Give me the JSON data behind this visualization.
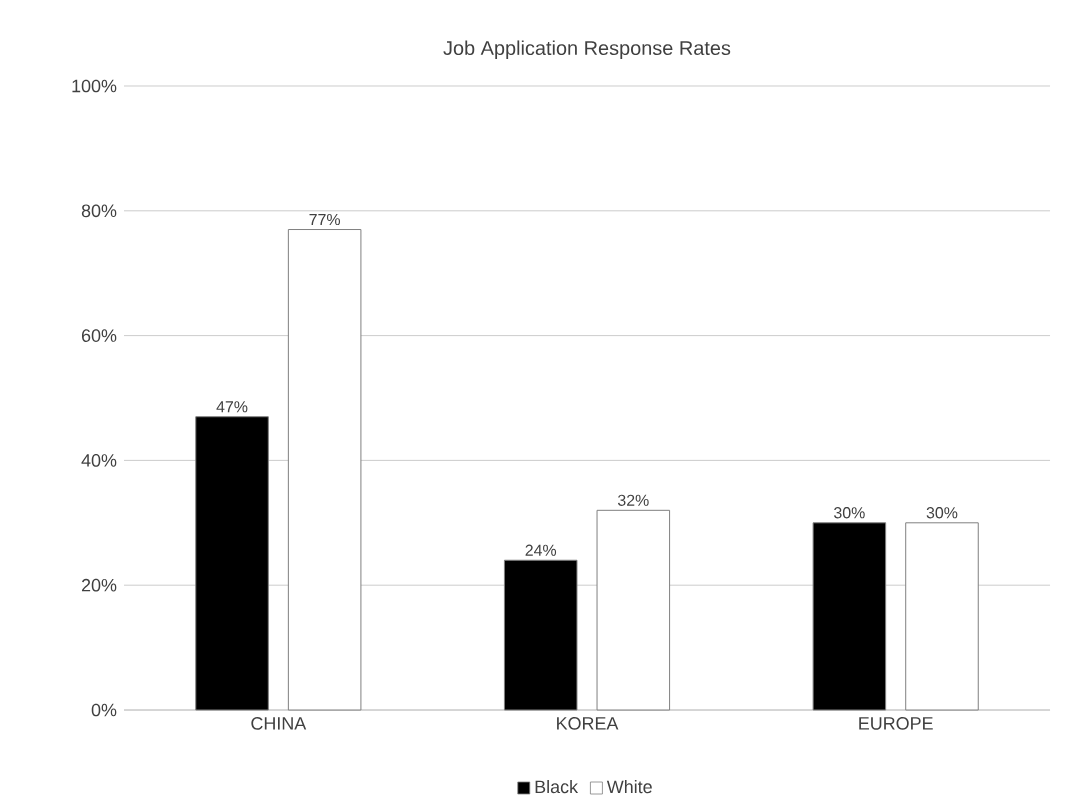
{
  "chart_data": {
    "type": "bar",
    "title": "Job Application Response Rates",
    "categories": [
      "CHINA",
      "KOREA",
      "EUROPE"
    ],
    "series": [
      {
        "name": "Black",
        "color": "#000000",
        "values": [
          47,
          24,
          30
        ],
        "value_labels": [
          "47%",
          "24%",
          "30%"
        ]
      },
      {
        "name": "White",
        "color": "#ffffff",
        "values": [
          77,
          32,
          30
        ],
        "value_labels": [
          "77%",
          "32%",
          "30%"
        ]
      }
    ],
    "ylim": [
      0,
      100
    ],
    "yticks": [
      {
        "value": 0,
        "label": "0%"
      },
      {
        "value": 20,
        "label": "20%"
      },
      {
        "value": 40,
        "label": "40%"
      },
      {
        "value": 60,
        "label": "60%"
      },
      {
        "value": 80,
        "label": "80%"
      },
      {
        "value": 100,
        "label": "100%"
      }
    ],
    "grid": "y",
    "legend": "bottom"
  }
}
